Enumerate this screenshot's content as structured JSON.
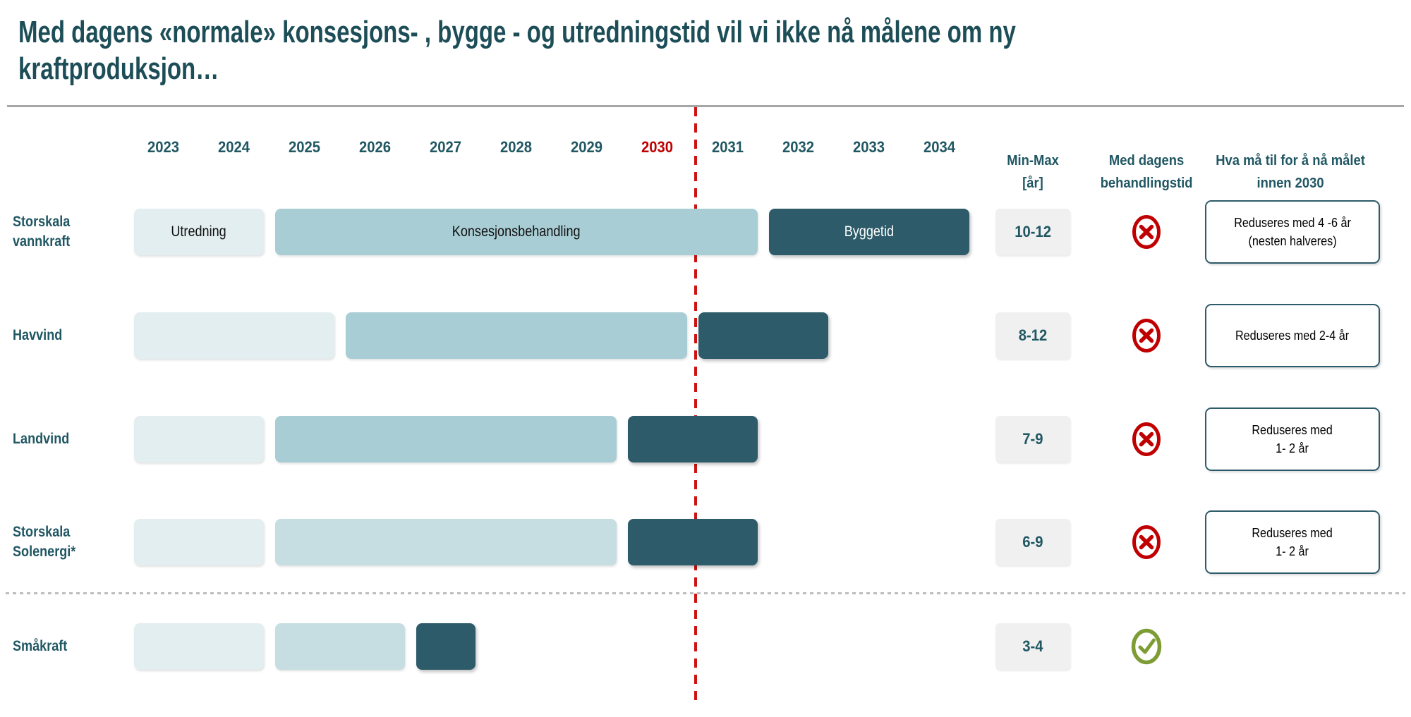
{
  "slide": {
    "title_line1": "Med dagens «normale» konsesjons- , bygge - og utredningstid vil vi ikke nå målene om ny",
    "title_line2": "kraftproduksjon…"
  },
  "columns": {
    "min_max": "Min-Max\n[år]",
    "med_dagens": "Med dagens\nbehandlingstid",
    "hva_ma_til": "Hva må til for å nå målet\ninnen 2030"
  },
  "chart_data": {
    "type": "gantt",
    "x_axis": {
      "years": [
        2023,
        2024,
        2025,
        2026,
        2027,
        2028,
        2029,
        2030,
        2031,
        2032,
        2033,
        2034
      ],
      "highlight_year": 2030,
      "target_boundary": "end of 2030 (red dashed line between 2030 and 2031)"
    },
    "palette": {
      "light": "#e3eef1",
      "medium": "#a9cdd4",
      "medium_light": "#c6dde1",
      "dark": "#2d5b69",
      "fail": "#c00000",
      "ok": "#7d9c34",
      "timeline_red": "#ce1111",
      "teal_text": "#205763"
    },
    "phase_legend": {
      "light": "Utredning",
      "medium": "Konsesjonsbehandling",
      "dark": "Byggetid"
    },
    "rows": [
      {
        "name": "Storskala vannkraft",
        "label": "Storskala\nvannkraft",
        "phases": [
          {
            "label": "Utredning",
            "from": 2023,
            "to": 2025,
            "style": "light"
          },
          {
            "label": "Konsesjonsbehandling",
            "from": 2025,
            "to": 2032,
            "style": "medium"
          },
          {
            "label": "Byggetid",
            "from": 2032,
            "to": 2035,
            "style": "dark"
          }
        ],
        "min_max": "10-12",
        "status": "fail",
        "note": "Reduseres med 4 -6 år\n(nesten halveres)"
      },
      {
        "name": "Havvind",
        "label": "Havvind",
        "phases": [
          {
            "label": "",
            "from": 2023,
            "to": 2026,
            "style": "light"
          },
          {
            "label": "",
            "from": 2026,
            "to": 2031,
            "style": "medium"
          },
          {
            "label": "",
            "from": 2031,
            "to": 2033,
            "style": "dark"
          }
        ],
        "min_max": "8-12",
        "status": "fail",
        "note": "Reduseres med 2-4 år"
      },
      {
        "name": "Landvind",
        "label": "Landvind",
        "phases": [
          {
            "label": "",
            "from": 2023,
            "to": 2025,
            "style": "light"
          },
          {
            "label": "",
            "from": 2025,
            "to": 2030,
            "style": "medium"
          },
          {
            "label": "",
            "from": 2030,
            "to": 2032,
            "style": "dark"
          }
        ],
        "min_max": "7-9",
        "status": "fail",
        "note": "Reduseres med\n1- 2 år"
      },
      {
        "name": "Storskala Solenergi*",
        "label": "Storskala\nSolenergi*",
        "phases": [
          {
            "label": "",
            "from": 2023,
            "to": 2025,
            "style": "light"
          },
          {
            "label": "",
            "from": 2025,
            "to": 2030,
            "style": "medium_light"
          },
          {
            "label": "",
            "from": 2030,
            "to": 2032,
            "style": "dark"
          }
        ],
        "min_max": "6-9",
        "status": "fail",
        "note": "Reduseres med\n1- 2 år"
      },
      {
        "name": "Småkraft",
        "label": "Småkraft",
        "phases": [
          {
            "label": "",
            "from": 2023,
            "to": 2025,
            "style": "light"
          },
          {
            "label": "",
            "from": 2025,
            "to": 2027,
            "style": "medium_light"
          },
          {
            "label": "",
            "from": 2027,
            "to": 2028,
            "style": "dark"
          }
        ],
        "min_max": "3-4",
        "status": "ok",
        "note": ""
      }
    ]
  }
}
